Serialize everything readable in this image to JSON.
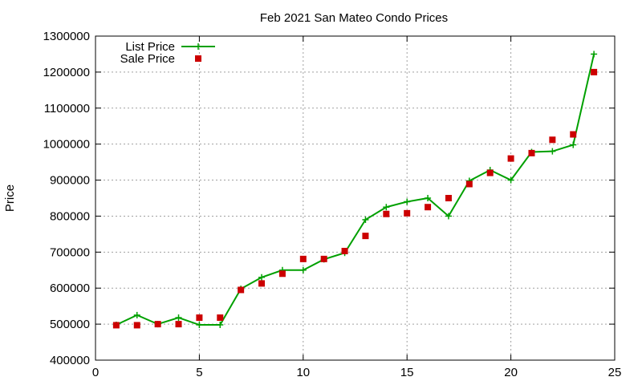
{
  "colors": {
    "list": "#00a000",
    "sale": "#cc0000"
  },
  "chart_data": {
    "type": "line",
    "title": "Feb 2021 San Mateo Condo Prices",
    "xlabel": "",
    "ylabel": "Price",
    "xlim": [
      0,
      25
    ],
    "ylim": [
      400000,
      1300000
    ],
    "xticks": [
      0,
      5,
      10,
      15,
      20,
      25
    ],
    "yticks": [
      400000,
      500000,
      600000,
      700000,
      800000,
      900000,
      1000000,
      1100000,
      1200000,
      1300000
    ],
    "grid": true,
    "legend_position": "top-left",
    "series": [
      {
        "name": "List Price",
        "style": "line-plus",
        "color": "#00a000",
        "x": [
          1,
          2,
          3,
          4,
          5,
          6,
          7,
          8,
          9,
          10,
          11,
          12,
          13,
          14,
          15,
          16,
          17,
          18,
          19,
          20,
          21,
          22,
          23,
          24
        ],
        "y": [
          498000,
          525000,
          500000,
          518000,
          498000,
          498000,
          598000,
          630000,
          650000,
          650000,
          680000,
          698000,
          790000,
          825000,
          840000,
          850000,
          800000,
          898000,
          928000,
          900000,
          978000,
          980000,
          998000,
          1250000
        ]
      },
      {
        "name": "Sale Price",
        "style": "square",
        "color": "#cc0000",
        "x": [
          1,
          2,
          3,
          4,
          5,
          6,
          7,
          8,
          9,
          10,
          11,
          12,
          13,
          14,
          15,
          16,
          17,
          18,
          19,
          20,
          21,
          22,
          23,
          24
        ],
        "y": [
          497000,
          497000,
          500000,
          500000,
          518000,
          518000,
          595000,
          613000,
          640000,
          681000,
          681000,
          703000,
          745000,
          806000,
          808000,
          825000,
          850000,
          889000,
          920000,
          960000,
          975000,
          1012000,
          1027000,
          1200000
        ]
      }
    ]
  }
}
